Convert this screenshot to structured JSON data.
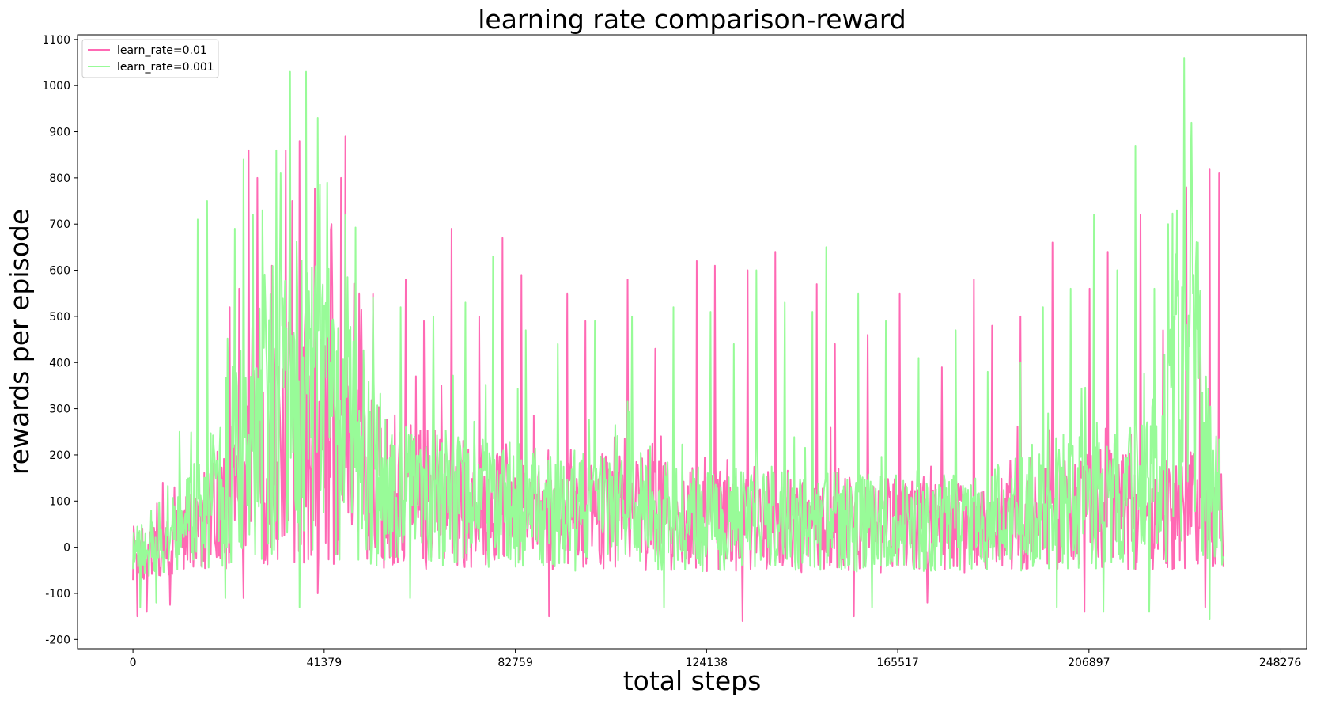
{
  "chart_data": {
    "type": "line",
    "title": "learning rate comparison-reward",
    "xlabel": "total steps",
    "ylabel": "rewards per episode",
    "xlim": [
      -12000,
      254000
    ],
    "ylim": [
      -220,
      1110
    ],
    "x_ticks": [
      0,
      41379,
      82759,
      124138,
      165517,
      206897,
      248276
    ],
    "y_ticks": [
      -200,
      -100,
      0,
      100,
      200,
      300,
      400,
      500,
      600,
      700,
      800,
      900,
      1000,
      1100
    ],
    "grid": false,
    "legend_position": "top-left",
    "x_max_data": 236000,
    "series": [
      {
        "name": "learn_rate=0.01",
        "color": "#ff69b4",
        "profile": [
          [
            0,
            -20
          ],
          [
            6000,
            -10
          ],
          [
            12000,
            30
          ],
          [
            18000,
            80
          ],
          [
            24000,
            130
          ],
          [
            30000,
            200
          ],
          [
            36000,
            250
          ],
          [
            42000,
            230
          ],
          [
            48000,
            180
          ],
          [
            54000,
            130
          ],
          [
            60000,
            110
          ],
          [
            70000,
            100
          ],
          [
            80000,
            90
          ],
          [
            95000,
            80
          ],
          [
            110000,
            70
          ],
          [
            125000,
            60
          ],
          [
            140000,
            55
          ],
          [
            155000,
            50
          ],
          [
            170000,
            45
          ],
          [
            185000,
            45
          ],
          [
            195000,
            60
          ],
          [
            205000,
            80
          ],
          [
            215000,
            80
          ],
          [
            222000,
            70
          ],
          [
            228000,
            80
          ],
          [
            236000,
            60
          ]
        ],
        "peaks": [
          [
            6500,
            140
          ],
          [
            9000,
            130
          ],
          [
            16000,
            410
          ],
          [
            21000,
            520
          ],
          [
            23000,
            560
          ],
          [
            25000,
            860
          ],
          [
            27000,
            800
          ],
          [
            30000,
            610
          ],
          [
            33000,
            860
          ],
          [
            34500,
            750
          ],
          [
            36000,
            880
          ],
          [
            40000,
            940
          ],
          [
            43000,
            700
          ],
          [
            45000,
            800
          ],
          [
            46000,
            890
          ],
          [
            49000,
            550
          ],
          [
            52000,
            550
          ],
          [
            59000,
            580
          ],
          [
            63000,
            490
          ],
          [
            69000,
            690
          ],
          [
            75000,
            500
          ],
          [
            80000,
            670
          ],
          [
            84000,
            590
          ],
          [
            94000,
            550
          ],
          [
            98000,
            490
          ],
          [
            107000,
            580
          ],
          [
            113000,
            430
          ],
          [
            122000,
            620
          ],
          [
            126000,
            610
          ],
          [
            133000,
            600
          ],
          [
            139000,
            640
          ],
          [
            148000,
            570
          ],
          [
            152000,
            440
          ],
          [
            159000,
            460
          ],
          [
            166000,
            550
          ],
          [
            175000,
            390
          ],
          [
            182000,
            580
          ],
          [
            186000,
            480
          ],
          [
            192000,
            500
          ],
          [
            199000,
            660
          ],
          [
            207000,
            560
          ],
          [
            211000,
            640
          ],
          [
            218000,
            720
          ],
          [
            223000,
            470
          ],
          [
            228000,
            780
          ],
          [
            231000,
            540
          ],
          [
            233000,
            820
          ],
          [
            235000,
            810
          ]
        ],
        "troughs": [
          [
            1000,
            -150
          ],
          [
            3000,
            -140
          ],
          [
            8000,
            -125
          ],
          [
            24000,
            -110
          ],
          [
            40000,
            -100
          ],
          [
            90000,
            -150
          ],
          [
            132000,
            -160
          ],
          [
            156000,
            -150
          ],
          [
            172000,
            -120
          ],
          [
            206000,
            -140
          ],
          [
            232000,
            -130
          ]
        ]
      },
      {
        "name": "learn_rate=0.001",
        "color": "#98fb98",
        "profile": [
          [
            0,
            -10
          ],
          [
            6000,
            0
          ],
          [
            12000,
            60
          ],
          [
            18000,
            130
          ],
          [
            24000,
            220
          ],
          [
            30000,
            300
          ],
          [
            36000,
            350
          ],
          [
            42000,
            300
          ],
          [
            48000,
            220
          ],
          [
            54000,
            140
          ],
          [
            60000,
            110
          ],
          [
            70000,
            100
          ],
          [
            80000,
            90
          ],
          [
            95000,
            80
          ],
          [
            110000,
            70
          ],
          [
            125000,
            60
          ],
          [
            140000,
            60
          ],
          [
            155000,
            55
          ],
          [
            170000,
            50
          ],
          [
            185000,
            60
          ],
          [
            195000,
            80
          ],
          [
            205000,
            110
          ],
          [
            215000,
            120
          ],
          [
            222000,
            150
          ],
          [
            226000,
            300
          ],
          [
            229000,
            420
          ],
          [
            232000,
            200
          ],
          [
            236000,
            60
          ]
        ],
        "peaks": [
          [
            4000,
            80
          ],
          [
            10000,
            250
          ],
          [
            14000,
            710
          ],
          [
            16000,
            750
          ],
          [
            20000,
            760
          ],
          [
            22000,
            690
          ],
          [
            24000,
            840
          ],
          [
            26000,
            720
          ],
          [
            28000,
            730
          ],
          [
            31000,
            860
          ],
          [
            32000,
            810
          ],
          [
            34000,
            1030
          ],
          [
            36000,
            880
          ],
          [
            37500,
            1030
          ],
          [
            40000,
            930
          ],
          [
            42000,
            790
          ],
          [
            46000,
            720
          ],
          [
            52000,
            540
          ],
          [
            58000,
            520
          ],
          [
            65000,
            500
          ],
          [
            72000,
            530
          ],
          [
            78000,
            630
          ],
          [
            85000,
            470
          ],
          [
            92000,
            440
          ],
          [
            100000,
            490
          ],
          [
            108000,
            500
          ],
          [
            117000,
            520
          ],
          [
            125000,
            510
          ],
          [
            130000,
            440
          ],
          [
            135000,
            600
          ],
          [
            141000,
            530
          ],
          [
            147000,
            510
          ],
          [
            150000,
            650
          ],
          [
            157000,
            550
          ],
          [
            163000,
            490
          ],
          [
            170000,
            410
          ],
          [
            178000,
            470
          ],
          [
            185000,
            380
          ],
          [
            192000,
            400
          ],
          [
            197000,
            520
          ],
          [
            203000,
            560
          ],
          [
            208000,
            720
          ],
          [
            213000,
            600
          ],
          [
            217000,
            870
          ],
          [
            221000,
            560
          ],
          [
            224000,
            700
          ],
          [
            226000,
            730
          ],
          [
            227500,
            1060
          ],
          [
            229000,
            920
          ],
          [
            230500,
            660
          ]
        ],
        "troughs": [
          [
            1500,
            -130
          ],
          [
            5000,
            -120
          ],
          [
            20000,
            -110
          ],
          [
            36000,
            -130
          ],
          [
            60000,
            -110
          ],
          [
            115000,
            -130
          ],
          [
            160000,
            -130
          ],
          [
            200000,
            -130
          ],
          [
            210000,
            -140
          ],
          [
            220000,
            -140
          ],
          [
            233000,
            -155
          ]
        ]
      }
    ]
  }
}
